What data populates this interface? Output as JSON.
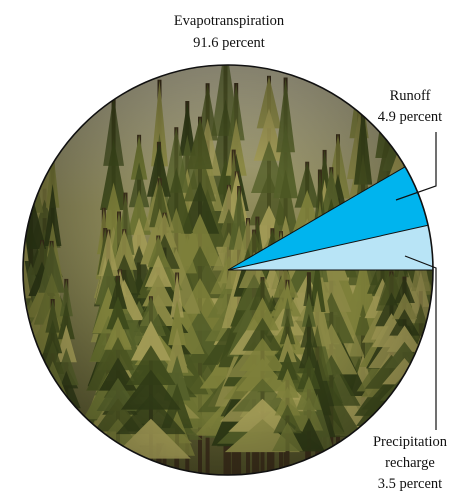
{
  "chart_data": {
    "type": "pie",
    "title": "",
    "slices": [
      {
        "label": "Evapotranspiration",
        "value": 91.6,
        "value_label": "91.6 percent",
        "color": "forest-photo"
      },
      {
        "label": "Runoff",
        "value": 4.9,
        "value_label": "4.9 percent",
        "color": "#00B4EE"
      },
      {
        "label_lines": [
          "Precipitation",
          "recharge"
        ],
        "label": "Precipitation recharge",
        "value": 3.5,
        "value_label": "3.5 percent",
        "color": "#B8E4F6"
      }
    ],
    "fill_image": "conifer forest photograph",
    "legend": "none (labels placed around pie with leader lines)"
  }
}
